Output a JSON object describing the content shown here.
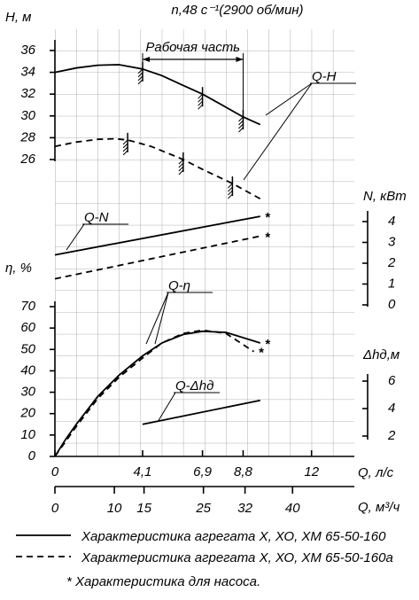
{
  "chart_data": {
    "type": "line",
    "title": "n,48 с⁻¹(2900 об/мин)",
    "x_label": "Q, л/с",
    "x2_label": "Q, м³/ч",
    "y_label": "H, м",
    "y2_label": "η, %",
    "y3_label": "N, кВт",
    "y4_label": "Δhд,м",
    "xlim": [
      0,
      14
    ],
    "xticks": [
      0,
      {
        "value": 4.1,
        "label": "4,1"
      },
      {
        "value": 6.9,
        "label": "6,9"
      },
      {
        "value": 8.8,
        "label": "8,8"
      },
      12
    ],
    "x2lim": [
      0,
      50.4
    ],
    "x2ticks": [
      0,
      10,
      15,
      25,
      32,
      40
    ],
    "ylim": [
      26,
      36
    ],
    "yticks": [
      26,
      28,
      30,
      32,
      34,
      36
    ],
    "y2lim": [
      0,
      70
    ],
    "y2ticks": [
      0,
      10,
      20,
      30,
      40,
      50,
      60,
      70
    ],
    "y3lim": [
      0,
      4
    ],
    "y3ticks": [
      0,
      1,
      2,
      3,
      4
    ],
    "y4lim": [
      2,
      6
    ],
    "y4ticks": [
      2,
      4,
      6
    ],
    "grid": true,
    "working_range_label": "Рабочая часть",
    "working_range": [
      4.1,
      8.8
    ],
    "curves": [
      {
        "name": "Q-H",
        "axis": "y",
        "series": [
          {
            "style": "solid",
            "x": [
              0,
              1,
              2,
              3,
              4.1,
              5,
              6,
              6.9,
              8,
              8.8,
              9.6
            ],
            "values": [
              34,
              34.4,
              34.65,
              34.7,
              34.3,
              33.7,
              32.8,
              32,
              30.8,
              29.9,
              29.2
            ],
            "operating_points": [
              4.1,
              6.9,
              8.8
            ]
          },
          {
            "style": "dashed",
            "x": [
              0,
              1,
              2,
              2.8,
              3.4,
              4.5,
              6,
              7,
              8.3,
              9.6
            ],
            "values": [
              27.2,
              27.6,
              27.85,
              27.9,
              27.8,
              27.2,
              26,
              25,
              23.8,
              22.4
            ],
            "operating_points": [
              3.4,
              6,
              8.3
            ]
          }
        ]
      },
      {
        "name": "Q-N",
        "axis": "y3",
        "series": [
          {
            "style": "solid",
            "x": [
              0,
              9.6
            ],
            "values": [
              2.4,
              4.25
            ],
            "pump": true
          },
          {
            "style": "dashed",
            "x": [
              0,
              9.6
            ],
            "values": [
              1.25,
              3.3
            ],
            "pump": true
          }
        ]
      },
      {
        "name": "Q-η",
        "axis": "y2",
        "series": [
          {
            "style": "solid",
            "x": [
              0,
              0.5,
              1,
              2,
              3,
              4.1,
              5,
              6,
              6.9,
              8,
              9.6
            ],
            "values": [
              0,
              8,
              15,
              28,
              38,
              47,
              53,
              57,
              58.5,
              58,
              53
            ],
            "pump": true
          },
          {
            "style": "dashed",
            "x": [
              0,
              0.5,
              1,
              2,
              3,
              4.1,
              5,
              6,
              6.9,
              8,
              9.3
            ],
            "values": [
              0,
              7,
              14,
              27,
              37,
              46,
              53,
              57.5,
              59,
              57.5,
              49
            ],
            "pump": true
          }
        ]
      },
      {
        "name": "Q-Δhд",
        "axis": "y4",
        "series": [
          {
            "style": "solid",
            "x": [
              4.1,
              9.6
            ],
            "values": [
              2.85,
              4.6
            ]
          }
        ]
      }
    ],
    "legend": [
      {
        "text": "Характеристика агрегата Х, ХО, ХМ 65-50-160",
        "style": "solid"
      },
      {
        "text": "Характеристика агрегата Х, ХО, ХМ 65-50-160а",
        "style": "dashed"
      }
    ],
    "pump_marker": "*",
    "footnote": "Характеристика для насоса."
  }
}
